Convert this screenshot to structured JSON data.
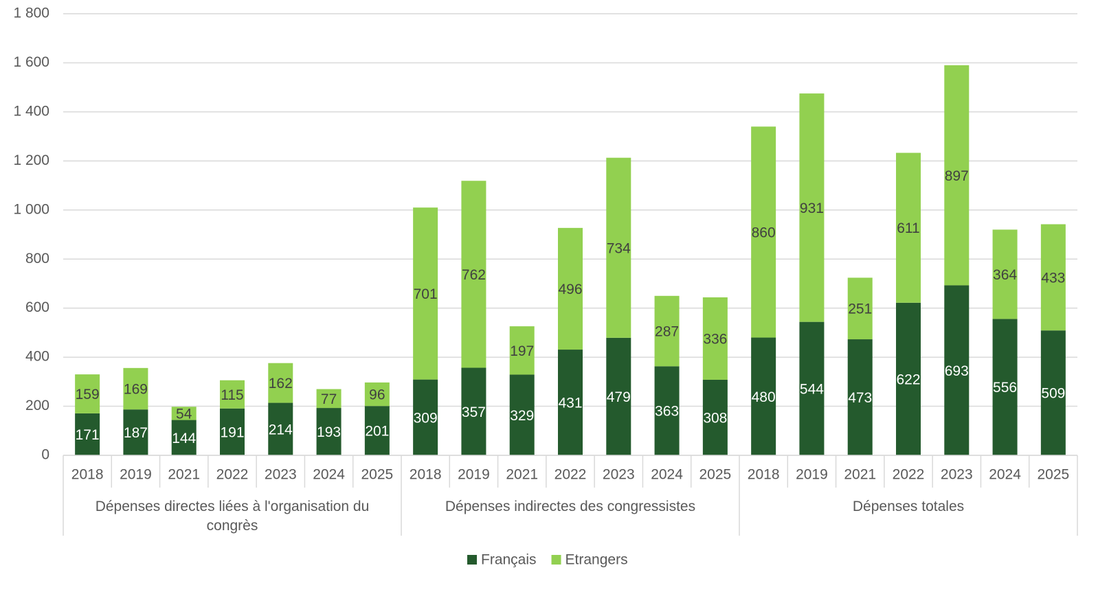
{
  "chart_data": {
    "type": "stacked_bar",
    "groups": [
      {
        "name": "Dépenses directes liées à l'organisation du congrès",
        "categories": [
          "2018",
          "2019",
          "2021",
          "2022",
          "2023",
          "2024",
          "2025"
        ]
      },
      {
        "name": "Dépenses indirectes des congressistes",
        "categories": [
          "2018",
          "2019",
          "2021",
          "2022",
          "2023",
          "2024",
          "2025"
        ]
      },
      {
        "name": "Dépenses totales",
        "categories": [
          "2018",
          "2019",
          "2021",
          "2022",
          "2023",
          "2024",
          "2025"
        ]
      }
    ],
    "series": [
      {
        "name": "Français",
        "color": "#245a2d",
        "label_color": "#ffffff",
        "values": [
          171,
          187,
          144,
          191,
          214,
          193,
          201,
          309,
          357,
          329,
          431,
          479,
          363,
          308,
          480,
          544,
          473,
          622,
          693,
          556,
          509
        ]
      },
      {
        "name": "Etrangers",
        "color": "#92d050",
        "label_color": "#404040",
        "values": [
          159,
          169,
          54,
          115,
          162,
          77,
          96,
          701,
          762,
          197,
          496,
          734,
          287,
          336,
          860,
          931,
          251,
          611,
          897,
          364,
          433
        ]
      }
    ],
    "ylim": [
      0,
      1800
    ],
    "yticks": [
      0,
      200,
      400,
      600,
      800,
      {
        "value": 1000,
        "label": "1 000"
      },
      {
        "value": 1200,
        "label": "1 200"
      },
      {
        "value": 1400,
        "label": "1 400"
      },
      {
        "value": 1600,
        "label": "1 600"
      },
      {
        "value": 1800,
        "label": "1 800"
      }
    ],
    "grid": true,
    "legend": "bottom"
  }
}
